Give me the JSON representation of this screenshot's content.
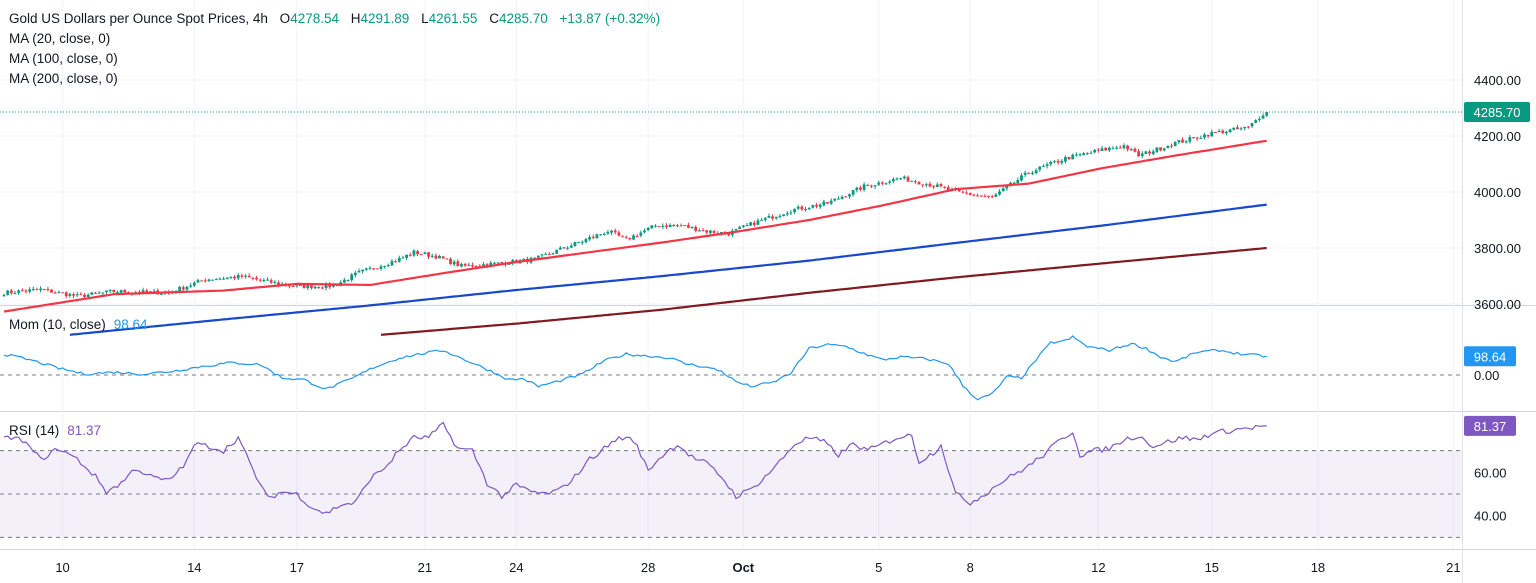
{
  "header": {
    "symbol": "Gold US Dollars per Ounce Spot Prices",
    "timeframe": "4h",
    "open_label": "O",
    "open": "4278.54",
    "high_label": "H",
    "high": "4291.89",
    "low_label": "L",
    "low": "4261.55",
    "close_label": "C",
    "close": "4285.70",
    "change": "+13.87 (+0.32%)"
  },
  "studies": {
    "ma20": "MA (20, close, 0)",
    "ma100": "MA (100, close, 0)",
    "ma200": "MA (200, close, 0)",
    "mom_label": "Mom (10, close)",
    "mom_value": "98.64",
    "rsi_label": "RSI (14)",
    "rsi_value": "81.37"
  },
  "colors": {
    "up": "#089981",
    "down": "#f23645",
    "ma20": "#f23645",
    "ma100": "#1848cc",
    "ma200": "#801922",
    "mom": "#2196f3",
    "rsi": "#7e57c2",
    "rsi_band": "#7e57c2"
  },
  "chart_data": [
    {
      "type": "candlestick",
      "title": "Gold US Dollars per Ounce Spot Prices, 4h",
      "y_ticks": [
        3600,
        3800,
        4000,
        4200,
        4400
      ],
      "y_tick_labels": [
        "3600.00",
        "3800.00",
        "4000.00",
        "4200.00",
        "4400.00"
      ],
      "ylim": [
        3490,
        4480
      ],
      "last_price_label": "4285.70",
      "last_price": 4285.7,
      "x_tick_labels": [
        "10",
        "14",
        "17",
        "21",
        "24",
        "28",
        "Oct",
        "5",
        "8",
        "12",
        "15",
        "18",
        "21"
      ],
      "close_anchors": [
        [
          0,
          3640
        ],
        [
          10,
          3652
        ],
        [
          20,
          3628
        ],
        [
          30,
          3645
        ],
        [
          45,
          3640
        ],
        [
          55,
          3688
        ],
        [
          65,
          3698
        ],
        [
          72,
          3680
        ],
        [
          80,
          3662
        ],
        [
          90,
          3665
        ],
        [
          97,
          3712
        ],
        [
          108,
          3760
        ],
        [
          112,
          3785
        ],
        [
          118,
          3770
        ],
        [
          125,
          3735
        ],
        [
          135,
          3745
        ],
        [
          145,
          3760
        ],
        [
          155,
          3810
        ],
        [
          165,
          3860
        ],
        [
          170,
          3830
        ],
        [
          178,
          3880
        ],
        [
          185,
          3880
        ],
        [
          192,
          3860
        ],
        [
          198,
          3852
        ],
        [
          205,
          3890
        ],
        [
          215,
          3935
        ],
        [
          225,
          3960
        ],
        [
          235,
          4020
        ],
        [
          245,
          4050
        ],
        [
          255,
          4020
        ],
        [
          260,
          4000
        ],
        [
          270,
          3980
        ],
        [
          280,
          4070
        ],
        [
          290,
          4120
        ],
        [
          300,
          4150
        ],
        [
          306,
          4165
        ],
        [
          310,
          4130
        ],
        [
          320,
          4175
        ],
        [
          330,
          4210
        ],
        [
          340,
          4230
        ],
        [
          344,
          4280
        ],
        [
          345,
          4285.7
        ]
      ],
      "ma": [
        {
          "label": "MA (20, close, 0)",
          "anchors": [
            [
              0,
              3573
            ],
            [
              30,
              3635
            ],
            [
              60,
              3648
            ],
            [
              80,
              3672
            ],
            [
              100,
              3668
            ],
            [
              120,
              3710
            ],
            [
              140,
              3750
            ],
            [
              160,
              3785
            ],
            [
              180,
              3820
            ],
            [
              200,
              3858
            ],
            [
              220,
              3900
            ],
            [
              240,
              3952
            ],
            [
              260,
              4010
            ],
            [
              280,
              4030
            ],
            [
              300,
              4085
            ],
            [
              320,
              4130
            ],
            [
              345,
              4183
            ]
          ]
        },
        {
          "label": "MA (100, close, 0)",
          "anchors": [
            [
              18,
              3490
            ],
            [
              60,
              3545
            ],
            [
              100,
              3595
            ],
            [
              140,
              3650
            ],
            [
              180,
              3700
            ],
            [
              220,
              3755
            ],
            [
              260,
              3818
            ],
            [
              300,
              3880
            ],
            [
              345,
              3955
            ]
          ]
        },
        {
          "label": "MA (200, close, 0)",
          "anchors": [
            [
              103,
              3490
            ],
            [
              140,
              3530
            ],
            [
              180,
              3580
            ],
            [
              220,
              3640
            ],
            [
              260,
              3695
            ],
            [
              300,
              3745
            ],
            [
              345,
              3800
            ]
          ]
        }
      ]
    },
    {
      "type": "line",
      "title": "Mom (10, close)",
      "last_value": 98.64,
      "last_value_label": "98.64",
      "y_tick_labels": [
        "0.00"
      ],
      "zero_line": 0,
      "anchors": [
        [
          0,
          110
        ],
        [
          8,
          75
        ],
        [
          15,
          35
        ],
        [
          22,
          5
        ],
        [
          30,
          15
        ],
        [
          38,
          5
        ],
        [
          46,
          20
        ],
        [
          54,
          45
        ],
        [
          62,
          65
        ],
        [
          70,
          55
        ],
        [
          76,
          -15
        ],
        [
          82,
          -25
        ],
        [
          88,
          -75
        ],
        [
          95,
          -20
        ],
        [
          101,
          40
        ],
        [
          108,
          90
        ],
        [
          115,
          115
        ],
        [
          120,
          130
        ],
        [
          126,
          80
        ],
        [
          132,
          30
        ],
        [
          138,
          -25
        ],
        [
          142,
          -20
        ],
        [
          146,
          -60
        ],
        [
          152,
          -30
        ],
        [
          158,
          5
        ],
        [
          164,
          75
        ],
        [
          170,
          110
        ],
        [
          176,
          100
        ],
        [
          182,
          90
        ],
        [
          186,
          60
        ],
        [
          191,
          45
        ],
        [
          196,
          20
        ],
        [
          200,
          -35
        ],
        [
          204,
          -60
        ],
        [
          210,
          -40
        ],
        [
          215,
          10
        ],
        [
          220,
          140
        ],
        [
          225,
          160
        ],
        [
          230,
          150
        ],
        [
          234,
          120
        ],
        [
          240,
          80
        ],
        [
          245,
          95
        ],
        [
          252,
          85
        ],
        [
          258,
          60
        ],
        [
          262,
          -55
        ],
        [
          266,
          -130
        ],
        [
          270,
          -100
        ],
        [
          274,
          -10
        ],
        [
          278,
          -15
        ],
        [
          282,
          80
        ],
        [
          286,
          170
        ],
        [
          290,
          180
        ],
        [
          292,
          200
        ],
        [
          296,
          150
        ],
        [
          302,
          130
        ],
        [
          308,
          165
        ],
        [
          312,
          140
        ],
        [
          316,
          95
        ],
        [
          320,
          70
        ],
        [
          326,
          120
        ],
        [
          332,
          130
        ],
        [
          338,
          110
        ],
        [
          345,
          98.64
        ]
      ]
    },
    {
      "type": "line",
      "title": "RSI (14)",
      "last_value": 81.37,
      "last_value_label": "81.37",
      "y_tick_labels": [
        "40.00",
        "60.00"
      ],
      "bands": [
        30,
        50,
        70
      ],
      "anchors": [
        [
          0,
          76
        ],
        [
          5,
          75
        ],
        [
          10,
          66
        ],
        [
          15,
          71
        ],
        [
          20,
          66
        ],
        [
          25,
          58
        ],
        [
          28,
          51
        ],
        [
          32,
          55
        ],
        [
          36,
          62
        ],
        [
          40,
          58
        ],
        [
          45,
          56
        ],
        [
          50,
          65
        ],
        [
          52,
          73
        ],
        [
          56,
          72
        ],
        [
          60,
          70
        ],
        [
          64,
          76
        ],
        [
          68,
          61
        ],
        [
          72,
          48
        ],
        [
          76,
          51
        ],
        [
          80,
          50
        ],
        [
          84,
          44
        ],
        [
          88,
          41
        ],
        [
          92,
          45
        ],
        [
          96,
          46
        ],
        [
          100,
          57
        ],
        [
          104,
          62
        ],
        [
          108,
          70
        ],
        [
          112,
          76
        ],
        [
          116,
          76
        ],
        [
          120,
          82
        ],
        [
          124,
          71
        ],
        [
          128,
          70
        ],
        [
          132,
          55
        ],
        [
          136,
          49
        ],
        [
          140,
          54
        ],
        [
          144,
          51
        ],
        [
          148,
          50
        ],
        [
          152,
          52
        ],
        [
          156,
          58
        ],
        [
          160,
          66
        ],
        [
          164,
          71
        ],
        [
          168,
          76
        ],
        [
          172,
          75
        ],
        [
          176,
          61
        ],
        [
          180,
          68
        ],
        [
          184,
          73
        ],
        [
          188,
          67
        ],
        [
          192,
          64
        ],
        [
          196,
          58
        ],
        [
          200,
          49
        ],
        [
          204,
          52
        ],
        [
          208,
          58
        ],
        [
          212,
          65
        ],
        [
          216,
          73
        ],
        [
          220,
          76
        ],
        [
          224,
          74
        ],
        [
          228,
          68
        ],
        [
          232,
          73
        ],
        [
          236,
          70
        ],
        [
          240,
          73
        ],
        [
          244,
          76
        ],
        [
          248,
          77
        ],
        [
          250,
          65
        ],
        [
          254,
          69
        ],
        [
          256,
          73
        ],
        [
          260,
          50
        ],
        [
          264,
          46
        ],
        [
          268,
          50
        ],
        [
          272,
          55
        ],
        [
          276,
          59
        ],
        [
          280,
          63
        ],
        [
          284,
          68
        ],
        [
          288,
          74
        ],
        [
          292,
          79
        ],
        [
          294,
          68
        ],
        [
          298,
          70
        ],
        [
          302,
          71
        ],
        [
          306,
          75
        ],
        [
          310,
          77
        ],
        [
          314,
          72
        ],
        [
          318,
          74
        ],
        [
          322,
          76
        ],
        [
          326,
          75
        ],
        [
          330,
          78
        ],
        [
          334,
          79
        ],
        [
          338,
          80
        ],
        [
          345,
          81.37
        ]
      ]
    }
  ]
}
